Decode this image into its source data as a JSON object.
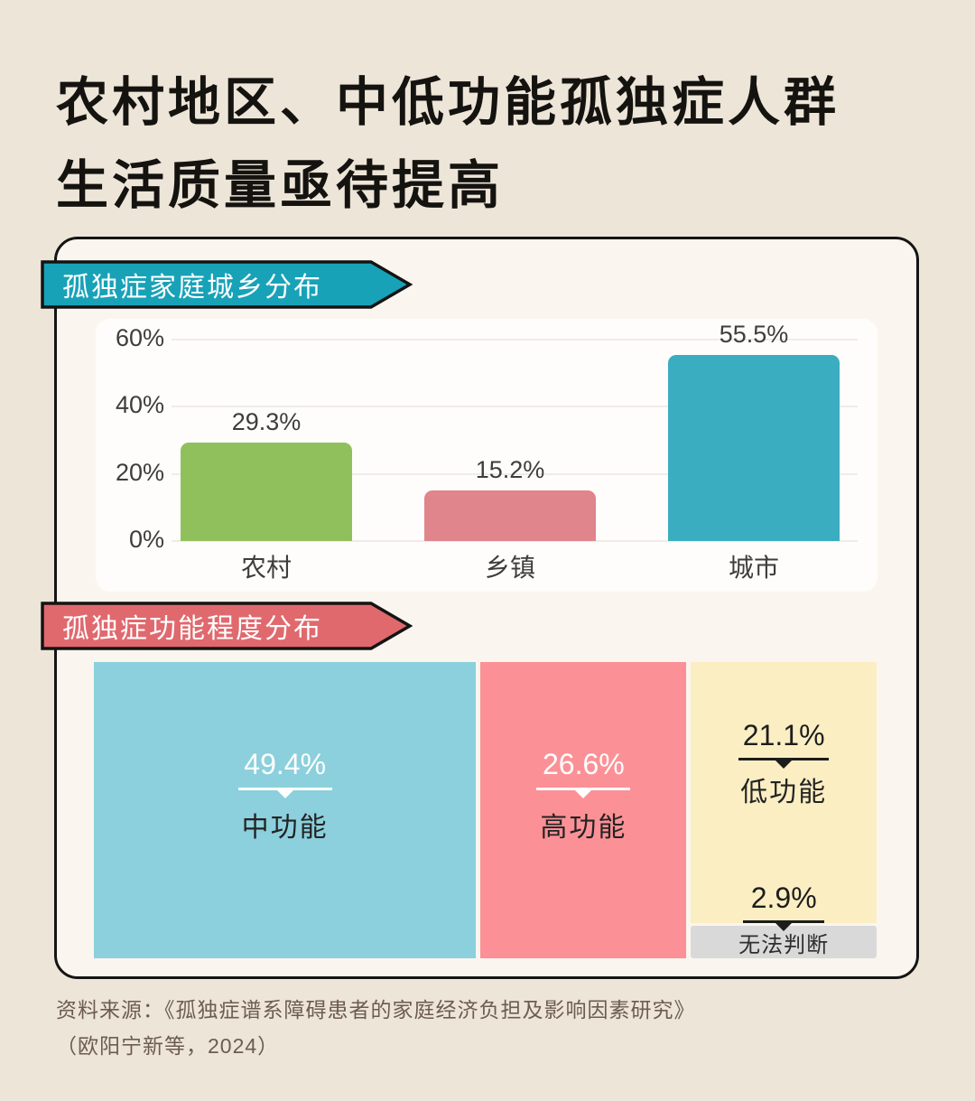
{
  "title": {
    "line1": "农村地区、中低功能孤独症人群",
    "line2": "生活质量亟待提高"
  },
  "source": {
    "line1": "资料来源：《孤独症谱系障碍患者的家庭经济负担及影响因素研究》",
    "line2": "（欧阳宁新等，2024）"
  },
  "colors": {
    "page_bg": "#ede5d8",
    "panel_bg": "#faf6ef",
    "panel_border": "#141414",
    "card_bg": "#fffdfb",
    "badge1": "#18a2b8",
    "badge2": "#e0696e",
    "gray_strip": "#d9d9d9"
  },
  "chart_data": [
    {
      "type": "bar",
      "title": "孤独症家庭城乡分布",
      "categories": [
        "农村",
        "乡镇",
        "城市"
      ],
      "values": [
        29.3,
        15.2,
        55.5
      ],
      "value_labels": [
        "29.3%",
        "15.2%",
        "55.5%"
      ],
      "bar_colors": [
        "#90c05c",
        "#df858b",
        "#3aadc1"
      ],
      "ytick_labels": [
        "60%",
        "40%",
        "20%",
        "0%"
      ],
      "yticks": [
        60,
        40,
        20,
        0
      ],
      "ylim": [
        0,
        60
      ],
      "grid": true,
      "legend": false
    },
    {
      "type": "treemap",
      "title": "孤独症功能程度分布",
      "segments": [
        {
          "label": "中功能",
          "value": 49.4,
          "value_label": "49.4%",
          "color": "#8bd0dc",
          "text": "light"
        },
        {
          "label": "高功能",
          "value": 26.6,
          "value_label": "26.6%",
          "color": "#fb9196",
          "text": "light"
        },
        {
          "label": "低功能",
          "value": 21.1,
          "value_label": "21.1%",
          "color": "#fbeec3",
          "text": "dark"
        },
        {
          "label": "无法判断",
          "value": 2.9,
          "value_label": "2.9%",
          "color": "#d9d9d9",
          "text": "dark"
        }
      ]
    }
  ]
}
